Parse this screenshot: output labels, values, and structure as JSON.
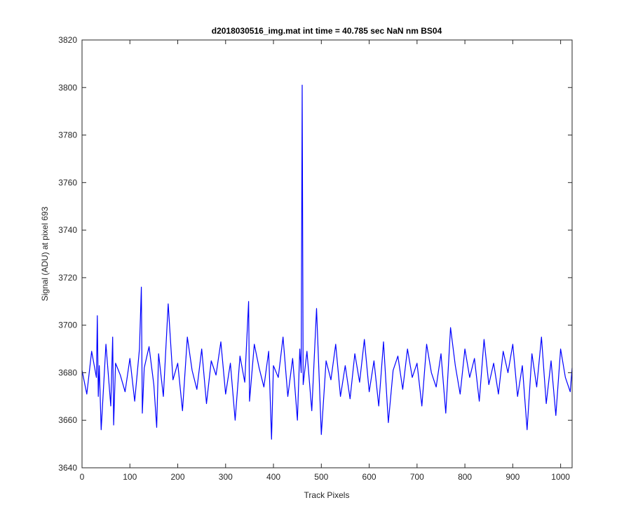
{
  "chart_data": {
    "type": "line",
    "title": "d2018030516_img.mat int time = 40.785 sec  NaN nm BS04",
    "xlabel": "Track Pixels",
    "ylabel": "Signal (ADU) at pixel 693",
    "xlim": [
      0,
      1024
    ],
    "ylim": [
      3640,
      3820
    ],
    "xticks": [
      0,
      100,
      200,
      300,
      400,
      500,
      600,
      700,
      800,
      900,
      1000
    ],
    "yticks": [
      3640,
      3660,
      3680,
      3700,
      3720,
      3740,
      3760,
      3780,
      3800,
      3820
    ],
    "grid": false,
    "legend": "none",
    "line_color": "#0000ff",
    "series": [
      {
        "x": [
          0,
          10,
          20,
          30,
          32,
          34,
          36,
          40,
          50,
          60,
          64,
          66,
          70,
          80,
          90,
          100,
          110,
          120,
          124,
          126,
          130,
          140,
          150,
          156,
          160,
          170,
          180,
          190,
          200,
          210,
          220,
          230,
          240,
          250,
          260,
          270,
          280,
          290,
          300,
          310,
          320,
          330,
          340,
          348,
          350,
          360,
          370,
          380,
          390,
          396,
          400,
          410,
          420,
          430,
          440,
          450,
          455,
          458,
          460,
          462,
          470,
          480,
          490,
          500,
          510,
          520,
          530,
          540,
          550,
          560,
          570,
          580,
          590,
          600,
          610,
          620,
          630,
          640,
          650,
          660,
          670,
          680,
          690,
          700,
          710,
          720,
          730,
          740,
          750,
          760,
          770,
          780,
          790,
          800,
          810,
          820,
          830,
          840,
          850,
          860,
          870,
          880,
          890,
          900,
          910,
          920,
          930,
          940,
          950,
          960,
          970,
          980,
          990,
          1000,
          1010,
          1020,
          1024
        ],
        "y": [
          3681,
          3671,
          3689,
          3678,
          3704,
          3670,
          3683,
          3656,
          3692,
          3666,
          3695,
          3658,
          3684,
          3679,
          3672,
          3686,
          3668,
          3690,
          3716,
          3663,
          3682,
          3691,
          3675,
          3657,
          3688,
          3670,
          3709,
          3677,
          3684,
          3664,
          3695,
          3681,
          3673,
          3690,
          3667,
          3685,
          3679,
          3693,
          3671,
          3684,
          3660,
          3687,
          3676,
          3710,
          3668,
          3692,
          3682,
          3674,
          3689,
          3652,
          3683,
          3678,
          3695,
          3670,
          3686,
          3660,
          3690,
          3680,
          3801,
          3675,
          3689,
          3664,
          3707,
          3654,
          3685,
          3677,
          3692,
          3670,
          3683,
          3669,
          3688,
          3676,
          3694,
          3672,
          3685,
          3666,
          3693,
          3659,
          3681,
          3687,
          3673,
          3690,
          3678,
          3684,
          3666,
          3692,
          3680,
          3674,
          3688,
          3663,
          3699,
          3683,
          3671,
          3690,
          3678,
          3686,
          3668,
          3694,
          3675,
          3684,
          3671,
          3689,
          3680,
          3692,
          3670,
          3683,
          3656,
          3688,
          3674,
          3695,
          3667,
          3685,
          3662,
          3690,
          3678,
          3672,
          3682
        ]
      }
    ]
  }
}
